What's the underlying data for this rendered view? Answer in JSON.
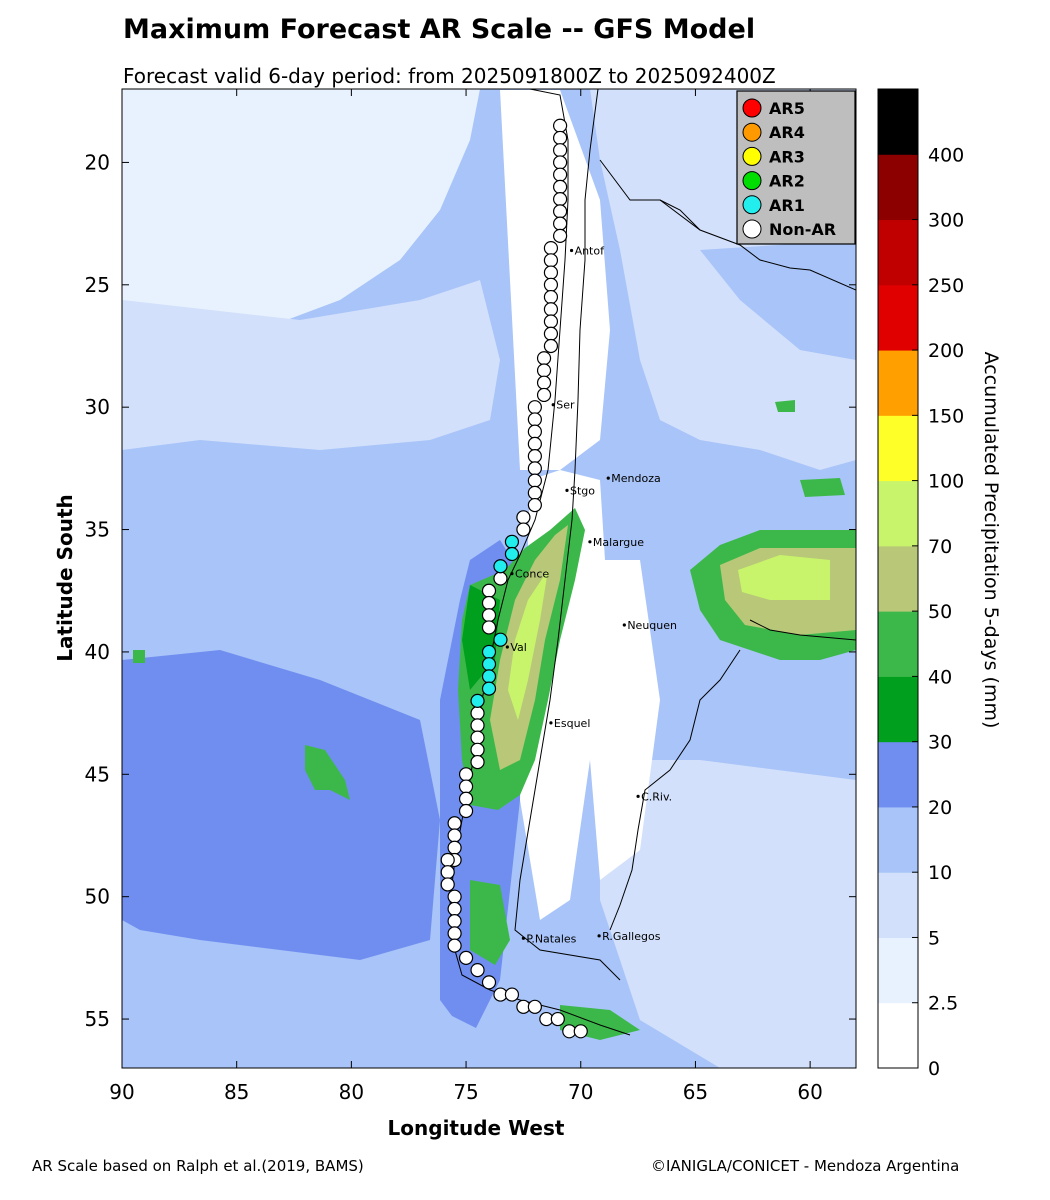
{
  "title": "Maximum Forecast AR Scale -- GFS Model",
  "subtitle": "Forecast valid 6-day period: from 2025091800Z to 2025092400Z",
  "axes": {
    "xlabel": "Longitude West",
    "ylabel": "Latitude South",
    "x_range": [
      90,
      58
    ],
    "y_range": [
      17,
      57
    ],
    "x_ticks": [
      90,
      85,
      80,
      75,
      70,
      65,
      60
    ],
    "y_ticks": [
      20,
      25,
      30,
      35,
      40,
      45,
      50,
      55
    ]
  },
  "legend": {
    "placement": "top-right",
    "items": [
      {
        "label": "AR5",
        "color": "#ff0000"
      },
      {
        "label": "AR4",
        "color": "#ff9900"
      },
      {
        "label": "AR3",
        "color": "#ffff00"
      },
      {
        "label": "AR2",
        "color": "#00dd00"
      },
      {
        "label": "AR1",
        "color": "#22eeee"
      },
      {
        "label": "Non-AR",
        "color": "#ffffff"
      }
    ]
  },
  "colorbar": {
    "label": "Accumulated Precipitation 5-days (mm)",
    "tick_labels": [
      "0",
      "2.5",
      "5",
      "10",
      "20",
      "30",
      "40",
      "50",
      "70",
      "100",
      "150",
      "200",
      "250",
      "300",
      "400"
    ],
    "colors": [
      "#ffffff",
      "#e8f2ff",
      "#d2e0fb",
      "#a8c4f8",
      "#6f8ef0",
      "#00a01e",
      "#3cb84a",
      "#b8c878",
      "#c8f46c",
      "#fefe28",
      "#ffa000",
      "#e00000",
      "#c00000",
      "#8c0000",
      "#000000"
    ]
  },
  "cities": [
    {
      "name": "Antof",
      "lon": 70.4,
      "lat": 23.6
    },
    {
      "name": "Ser",
      "lon": 71.2,
      "lat": 29.9
    },
    {
      "name": "Mendoza",
      "lon": 68.8,
      "lat": 32.9
    },
    {
      "name": "Stgo",
      "lon": 70.6,
      "lat": 33.4
    },
    {
      "name": "Malargue",
      "lon": 69.6,
      "lat": 35.5
    },
    {
      "name": "Conce",
      "lon": 73.0,
      "lat": 36.8
    },
    {
      "name": "Val",
      "lon": 73.2,
      "lat": 39.8
    },
    {
      "name": "Neuquen",
      "lon": 68.1,
      "lat": 38.9
    },
    {
      "name": "Esquel",
      "lon": 71.3,
      "lat": 42.9
    },
    {
      "name": "C.Riv.",
      "lon": 67.5,
      "lat": 45.9
    },
    {
      "name": "P.Natales",
      "lon": 72.5,
      "lat": 51.7
    },
    {
      "name": "R.Gallegos",
      "lon": 69.2,
      "lat": 51.6
    }
  ],
  "ar_points": {
    "non_ar": [
      [
        70.9,
        18.5
      ],
      [
        70.9,
        19.0
      ],
      [
        70.9,
        19.5
      ],
      [
        70.9,
        20.0
      ],
      [
        70.9,
        20.5
      ],
      [
        70.9,
        21.0
      ],
      [
        70.9,
        21.5
      ],
      [
        70.9,
        22.0
      ],
      [
        70.9,
        22.5
      ],
      [
        70.9,
        23.0
      ],
      [
        71.3,
        23.5
      ],
      [
        71.3,
        24.0
      ],
      [
        71.3,
        24.5
      ],
      [
        71.3,
        25.0
      ],
      [
        71.3,
        25.5
      ],
      [
        71.3,
        26.0
      ],
      [
        71.3,
        26.5
      ],
      [
        71.3,
        27.0
      ],
      [
        71.3,
        27.5
      ],
      [
        71.6,
        28.0
      ],
      [
        71.6,
        28.5
      ],
      [
        71.6,
        29.0
      ],
      [
        71.6,
        29.5
      ],
      [
        72.0,
        30.0
      ],
      [
        72.0,
        30.5
      ],
      [
        72.0,
        31.0
      ],
      [
        72.0,
        31.5
      ],
      [
        72.0,
        32.0
      ],
      [
        72.0,
        32.5
      ],
      [
        72.0,
        33.0
      ],
      [
        72.0,
        33.5
      ],
      [
        72.0,
        34.0
      ],
      [
        72.5,
        34.5
      ],
      [
        72.5,
        35.0
      ],
      [
        73.5,
        37.0
      ],
      [
        74.0,
        37.5
      ],
      [
        74.0,
        38.0
      ],
      [
        74.0,
        38.5
      ],
      [
        74.0,
        39.0
      ],
      [
        74.5,
        42.5
      ],
      [
        74.5,
        43.0
      ],
      [
        74.5,
        43.5
      ],
      [
        74.5,
        44.0
      ],
      [
        74.5,
        44.5
      ],
      [
        75.0,
        45.0
      ],
      [
        75.0,
        45.5
      ],
      [
        75.0,
        46.0
      ],
      [
        75.0,
        46.5
      ],
      [
        75.5,
        47.0
      ],
      [
        75.5,
        47.5
      ],
      [
        75.5,
        48.0
      ],
      [
        75.5,
        48.5
      ],
      [
        75.8,
        48.5
      ],
      [
        75.8,
        49.0
      ],
      [
        75.8,
        49.5
      ],
      [
        75.5,
        50.0
      ],
      [
        75.5,
        50.5
      ],
      [
        75.5,
        51.0
      ],
      [
        75.5,
        51.5
      ],
      [
        75.5,
        52.0
      ],
      [
        75.0,
        52.5
      ],
      [
        74.5,
        53.0
      ],
      [
        74.0,
        53.5
      ],
      [
        73.5,
        54.0
      ],
      [
        73.0,
        54.0
      ],
      [
        72.5,
        54.5
      ],
      [
        72.0,
        54.5
      ],
      [
        71.5,
        55.0
      ],
      [
        71.0,
        55.0
      ],
      [
        70.5,
        55.5
      ],
      [
        70.0,
        55.5
      ]
    ],
    "ar1": [
      [
        73.0,
        35.5
      ],
      [
        73.0,
        36.0
      ],
      [
        73.5,
        36.5
      ],
      [
        73.5,
        39.5
      ],
      [
        74.0,
        40.0
      ],
      [
        74.0,
        40.5
      ],
      [
        74.0,
        41.0
      ],
      [
        74.0,
        41.5
      ],
      [
        74.5,
        42.0
      ]
    ]
  }
}
